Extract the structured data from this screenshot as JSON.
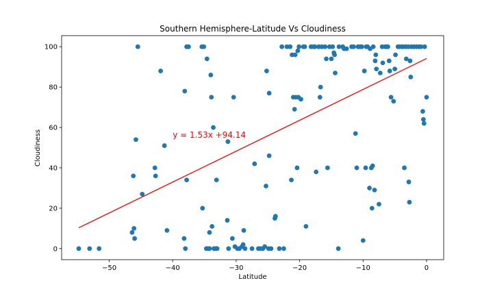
{
  "chart_data": {
    "type": "scatter",
    "title": "Southern Hemisphere-Latitude Vs Cloudiness",
    "xlabel": "Latitude",
    "ylabel": "Cloudiness",
    "xlim": [
      -57.5,
      2.7
    ],
    "ylim": [
      -5.5,
      105.5
    ],
    "xticks": [
      -50,
      -40,
      -30,
      -20,
      -10,
      0
    ],
    "yticks": [
      0,
      20,
      40,
      60,
      80,
      100
    ],
    "grid": false,
    "point_color": "#1f77b4",
    "line_color": "#ff0000",
    "regression": {
      "slope": 1.53,
      "intercept": 94.14,
      "x_start": -54.8,
      "x_end": 0
    },
    "annotation": {
      "text": "y = 1.53x +94.14",
      "x": -40,
      "y": 55
    },
    "points": [
      [
        -54.8,
        0
      ],
      [
        -53.1,
        0
      ],
      [
        -51.6,
        0
      ],
      [
        -46.4,
        8
      ],
      [
        -46.1,
        10
      ],
      [
        -46.0,
        5
      ],
      [
        -46.2,
        36
      ],
      [
        -45.8,
        54
      ],
      [
        -45.5,
        100
      ],
      [
        -44.8,
        27
      ],
      [
        -42.8,
        40
      ],
      [
        -42.7,
        36
      ],
      [
        -41.9,
        88
      ],
      [
        -41.3,
        51
      ],
      [
        -40.9,
        9
      ],
      [
        -38.2,
        5
      ],
      [
        -38.1,
        78
      ],
      [
        -38.0,
        0
      ],
      [
        -37.8,
        100
      ],
      [
        -37.6,
        100
      ],
      [
        -37.8,
        34
      ],
      [
        -37.5,
        100
      ],
      [
        -35.4,
        100
      ],
      [
        -35.1,
        100
      ],
      [
        -35.3,
        20
      ],
      [
        -34.7,
        0
      ],
      [
        -34.6,
        94
      ],
      [
        -34.4,
        0
      ],
      [
        -34.2,
        0
      ],
      [
        -34.0,
        86
      ],
      [
        -34.2,
        8
      ],
      [
        -33.9,
        75
      ],
      [
        -33.8,
        11
      ],
      [
        -33.6,
        60
      ],
      [
        -33.5,
        0
      ],
      [
        -33.2,
        0
      ],
      [
        -33.1,
        34
      ],
      [
        -33.0,
        0
      ],
      [
        -31.4,
        14
      ],
      [
        -31.3,
        53
      ],
      [
        -31.2,
        0
      ],
      [
        -30.6,
        5
      ],
      [
        -30.4,
        75
      ],
      [
        -30.2,
        1
      ],
      [
        -29.8,
        0
      ],
      [
        -29.5,
        0
      ],
      [
        -29.1,
        1
      ],
      [
        -28.9,
        2
      ],
      [
        -28.8,
        9
      ],
      [
        -28.6,
        0
      ],
      [
        -27.5,
        0
      ],
      [
        -27.1,
        42
      ],
      [
        -26.5,
        0
      ],
      [
        -26.2,
        0
      ],
      [
        -25.8,
        0
      ],
      [
        -25.5,
        1
      ],
      [
        -25.3,
        31
      ],
      [
        -25.2,
        88
      ],
      [
        -24.9,
        0
      ],
      [
        -24.8,
        46
      ],
      [
        -24.8,
        77
      ],
      [
        -24.5,
        0
      ],
      [
        -23.9,
        15
      ],
      [
        -23.8,
        16
      ],
      [
        -23.2,
        0
      ],
      [
        -22.8,
        100
      ],
      [
        -22.5,
        0
      ],
      [
        -22.0,
        100
      ],
      [
        -21.5,
        100
      ],
      [
        -21.3,
        34
      ],
      [
        -21.2,
        96
      ],
      [
        -21.0,
        75
      ],
      [
        -20.8,
        69
      ],
      [
        -20.7,
        96
      ],
      [
        -20.6,
        75
      ],
      [
        -20.4,
        40
      ],
      [
        -20.3,
        98
      ],
      [
        -20.2,
        75
      ],
      [
        -20.1,
        100
      ],
      [
        -19.8,
        74
      ],
      [
        -19.4,
        100
      ],
      [
        -19.2,
        100
      ],
      [
        -19.0,
        11
      ],
      [
        -18.2,
        100
      ],
      [
        -17.8,
        100
      ],
      [
        -17.6,
        100
      ],
      [
        -17.4,
        38
      ],
      [
        -17.0,
        100
      ],
      [
        -16.8,
        75
      ],
      [
        -16.7,
        80
      ],
      [
        -16.5,
        100
      ],
      [
        -16.0,
        100
      ],
      [
        -15.8,
        94
      ],
      [
        -15.6,
        40
      ],
      [
        -15.3,
        100
      ],
      [
        -15.0,
        94
      ],
      [
        -14.8,
        100
      ],
      [
        -14.6,
        97
      ],
      [
        -14.5,
        96
      ],
      [
        -14.4,
        87
      ],
      [
        -13.9,
        0
      ],
      [
        -13.8,
        100
      ],
      [
        -13.2,
        100
      ],
      [
        -13.0,
        99
      ],
      [
        -12.6,
        99
      ],
      [
        -11.8,
        100
      ],
      [
        -11.5,
        100
      ],
      [
        -11.2,
        57
      ],
      [
        -11.0,
        40
      ],
      [
        -10.8,
        100
      ],
      [
        -10.5,
        100
      ],
      [
        -10.2,
        100
      ],
      [
        -10.0,
        4
      ],
      [
        -9.8,
        88
      ],
      [
        -9.6,
        40
      ],
      [
        -9.5,
        100
      ],
      [
        -9.3,
        100
      ],
      [
        -9.0,
        30
      ],
      [
        -8.9,
        99
      ],
      [
        -8.7,
        40
      ],
      [
        -8.6,
        20
      ],
      [
        -8.5,
        41
      ],
      [
        -8.4,
        100
      ],
      [
        -8.2,
        29
      ],
      [
        -8.1,
        93
      ],
      [
        -8.0,
        96
      ],
      [
        -7.9,
        89
      ],
      [
        -7.5,
        22
      ],
      [
        -7.3,
        87
      ],
      [
        -7.0,
        100
      ],
      [
        -6.9,
        92
      ],
      [
        -6.5,
        100
      ],
      [
        -6.3,
        100
      ],
      [
        -6.1,
        100
      ],
      [
        -5.9,
        93
      ],
      [
        -5.8,
        88
      ],
      [
        -5.6,
        75
      ],
      [
        -5.2,
        73
      ],
      [
        -5.0,
        89
      ],
      [
        -4.9,
        96
      ],
      [
        -4.5,
        100
      ],
      [
        -4.3,
        100
      ],
      [
        -3.9,
        100
      ],
      [
        -3.7,
        100
      ],
      [
        -3.5,
        40
      ],
      [
        -3.3,
        100
      ],
      [
        -3.2,
        94
      ],
      [
        -2.9,
        100
      ],
      [
        -2.8,
        33
      ],
      [
        -2.7,
        23
      ],
      [
        -2.6,
        93
      ],
      [
        -2.5,
        85
      ],
      [
        -2.4,
        100
      ],
      [
        -2.0,
        100
      ],
      [
        -1.6,
        100
      ],
      [
        -1.2,
        100
      ],
      [
        -0.9,
        100
      ],
      [
        -0.6,
        68
      ],
      [
        -0.5,
        64
      ],
      [
        -0.4,
        62
      ],
      [
        -0.3,
        100
      ],
      [
        0.0,
        75
      ]
    ]
  }
}
